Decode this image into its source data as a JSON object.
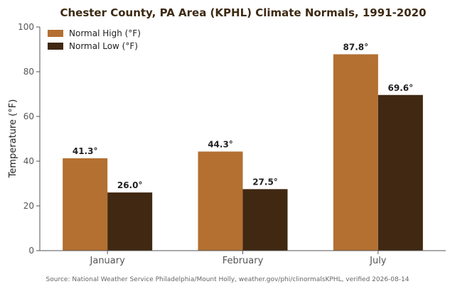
{
  "chart_data": {
    "type": "bar",
    "title": "Chester County, PA Area (KPHL) Climate Normals, 1991-2020",
    "xlabel": "",
    "ylabel": "Temperature (°F)",
    "ylim": [
      0,
      100
    ],
    "yticks": [
      "0",
      "20",
      "40",
      "60",
      "80",
      "100"
    ],
    "categories": [
      "January",
      "February",
      "July"
    ],
    "series": [
      {
        "name": "Normal High (°F)",
        "values": [
          41.3,
          44.3,
          87.8
        ],
        "labels": [
          "41.3°",
          "44.3°",
          "87.8°"
        ],
        "color": "#b37031"
      },
      {
        "name": "Normal Low (°F)",
        "values": [
          26.0,
          27.5,
          69.6
        ],
        "labels": [
          "26.0°",
          "27.5°",
          "69.6°"
        ],
        "color": "#402812"
      }
    ],
    "legend_position": "top-left",
    "grid": false
  },
  "source": "Source: National Weather Service Philadelphia/Mount Holly, weather.gov/phi/clinormalsKPHL, verified 2026-08-14"
}
